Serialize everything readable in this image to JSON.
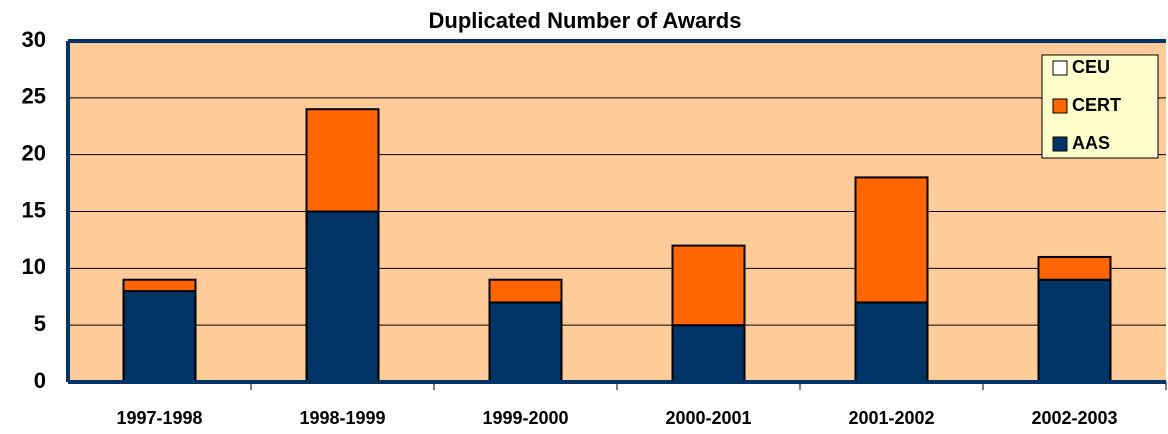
{
  "chart_data": {
    "type": "stacked_bar",
    "title": "Duplicated Number of Awards",
    "categories": [
      "1997-1998",
      "1998-1999",
      "1999-2000",
      "2000-2001",
      "2001-2002",
      "2002-2003"
    ],
    "series": [
      {
        "name": "AAS",
        "color": "#003366",
        "values": [
          8,
          15,
          7,
          5,
          7,
          9
        ]
      },
      {
        "name": "CERT",
        "color": "#FF6600",
        "values": [
          1,
          9,
          2,
          7,
          11,
          2
        ]
      },
      {
        "name": "CEU",
        "color": "#FFFFFF",
        "values": [
          0,
          0,
          0,
          0,
          0,
          0
        ]
      }
    ],
    "ylim": [
      0,
      30
    ],
    "yticks": [
      0,
      5,
      10,
      15,
      20,
      25,
      30
    ],
    "grid": true,
    "legend": "top-right",
    "background": "#FFCC99"
  }
}
